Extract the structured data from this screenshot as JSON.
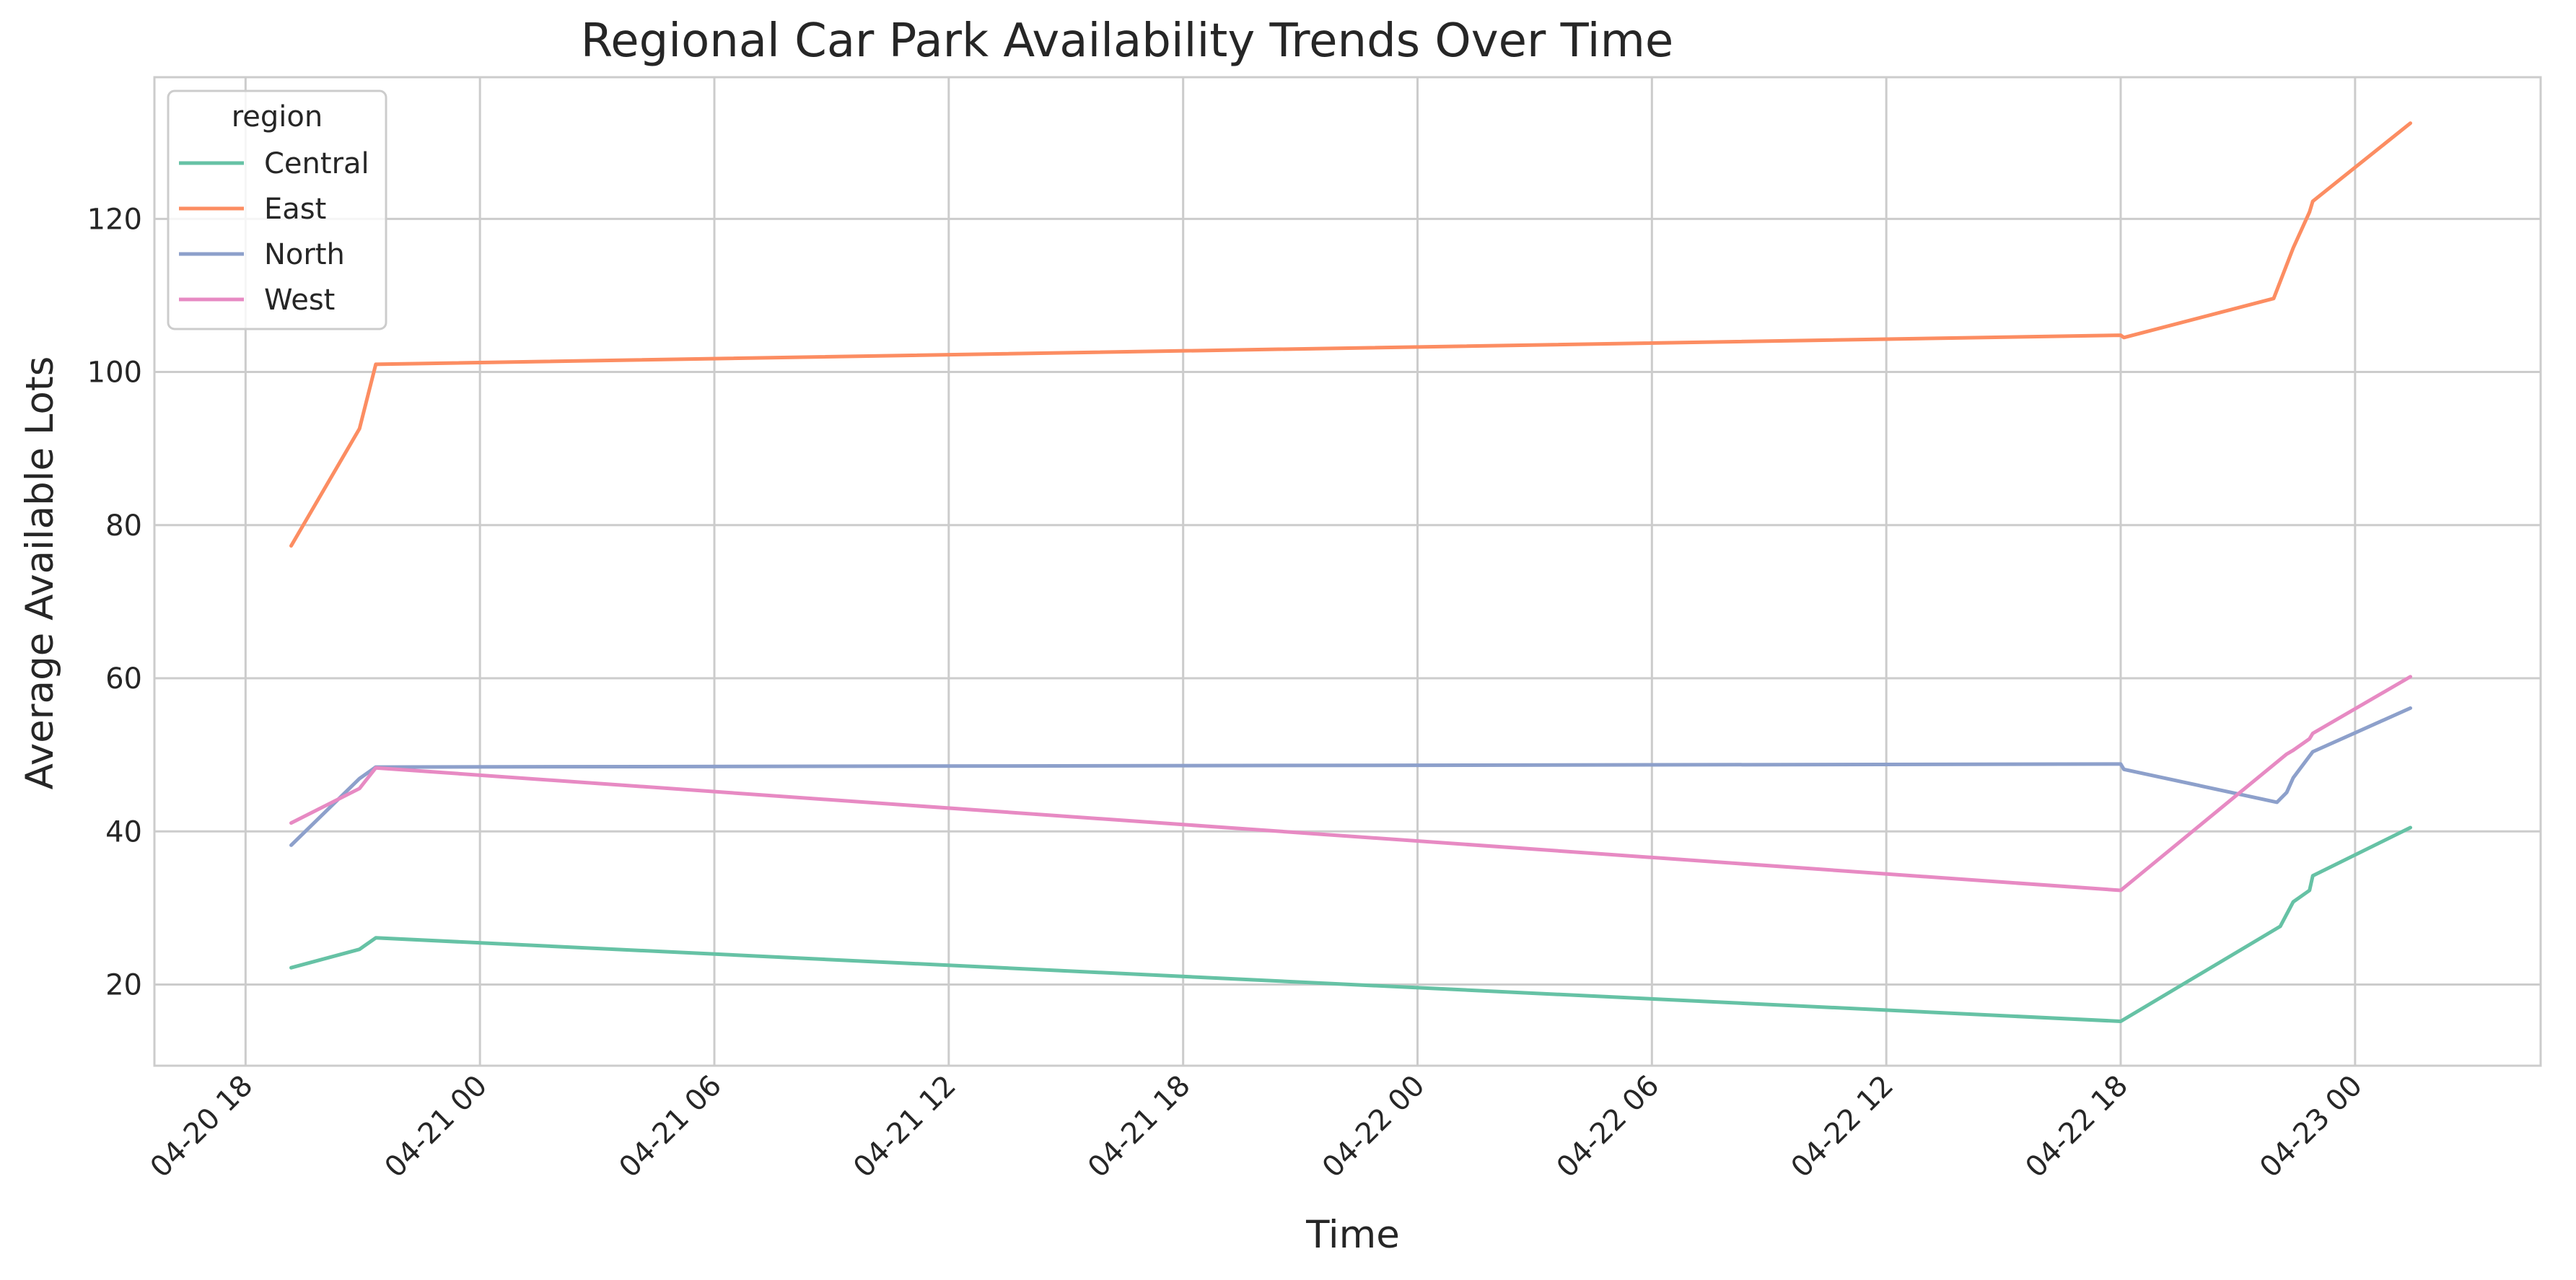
{
  "chart_data": {
    "type": "line",
    "title": "Regional Car Park Availability Trends Over Time",
    "xlabel": "Time",
    "ylabel": "Average Available Lots",
    "x_ticks": [
      {
        "label": "04-20 18",
        "value": "2024-04-20T18:00"
      },
      {
        "label": "04-21 00",
        "value": "2024-04-21T00:00"
      },
      {
        "label": "04-21 06",
        "value": "2024-04-21T06:00"
      },
      {
        "label": "04-21 12",
        "value": "2024-04-21T12:00"
      },
      {
        "label": "04-21 18",
        "value": "2024-04-21T18:00"
      },
      {
        "label": "04-22 00",
        "value": "2024-04-22T00:00"
      },
      {
        "label": "04-22 06",
        "value": "2024-04-22T06:00"
      },
      {
        "label": "04-22 12",
        "value": "2024-04-22T12:00"
      },
      {
        "label": "04-22 18",
        "value": "2024-04-22T18:00"
      },
      {
        "label": "04-23 00",
        "value": "2024-04-23T00:00"
      }
    ],
    "y_ticks": [
      20,
      40,
      60,
      80,
      100,
      120
    ],
    "xlim": [
      "2024-04-20T15:40",
      "2024-04-23T04:45"
    ],
    "ylim": [
      9.4,
      138.5
    ],
    "grid": true,
    "legend": {
      "title": "region",
      "position": "upper left"
    },
    "series": [
      {
        "name": "Central",
        "color": "#66c2a5",
        "points": [
          {
            "x": "2024-04-20T19:10",
            "y": 22.2
          },
          {
            "x": "2024-04-20T20:55",
            "y": 24.6
          },
          {
            "x": "2024-04-20T21:20",
            "y": 26.1
          },
          {
            "x": "2024-04-22T18:00",
            "y": 15.2
          },
          {
            "x": "2024-04-22T22:05",
            "y": 27.6
          },
          {
            "x": "2024-04-22T22:25",
            "y": 30.8
          },
          {
            "x": "2024-04-22T22:50",
            "y": 32.3
          },
          {
            "x": "2024-04-22T22:55",
            "y": 34.2
          },
          {
            "x": "2024-04-23T01:25",
            "y": 40.5
          }
        ]
      },
      {
        "name": "East",
        "color": "#fc8d62",
        "points": [
          {
            "x": "2024-04-20T19:10",
            "y": 77.3
          },
          {
            "x": "2024-04-20T20:55",
            "y": 92.6
          },
          {
            "x": "2024-04-20T21:20",
            "y": 101.0
          },
          {
            "x": "2024-04-22T18:00",
            "y": 104.8
          },
          {
            "x": "2024-04-22T18:05",
            "y": 104.5
          },
          {
            "x": "2024-04-22T21:55",
            "y": 109.6
          },
          {
            "x": "2024-04-22T22:25",
            "y": 116.2
          },
          {
            "x": "2024-04-22T22:50",
            "y": 120.9
          },
          {
            "x": "2024-04-22T22:55",
            "y": 122.3
          },
          {
            "x": "2024-04-23T01:25",
            "y": 132.5
          }
        ]
      },
      {
        "name": "North",
        "color": "#8da0cb",
        "points": [
          {
            "x": "2024-04-20T19:10",
            "y": 38.2
          },
          {
            "x": "2024-04-20T20:55",
            "y": 46.9
          },
          {
            "x": "2024-04-20T21:20",
            "y": 48.4
          },
          {
            "x": "2024-04-22T18:00",
            "y": 48.8
          },
          {
            "x": "2024-04-22T18:05",
            "y": 48.1
          },
          {
            "x": "2024-04-22T22:00",
            "y": 43.8
          },
          {
            "x": "2024-04-22T22:15",
            "y": 45.1
          },
          {
            "x": "2024-04-22T22:25",
            "y": 47.0
          },
          {
            "x": "2024-04-22T22:55",
            "y": 50.4
          },
          {
            "x": "2024-04-23T01:25",
            "y": 56.1
          }
        ]
      },
      {
        "name": "West",
        "color": "#e78ac3",
        "points": [
          {
            "x": "2024-04-20T19:10",
            "y": 41.1
          },
          {
            "x": "2024-04-20T20:55",
            "y": 45.6
          },
          {
            "x": "2024-04-20T21:20",
            "y": 48.3
          },
          {
            "x": "2024-04-22T18:00",
            "y": 32.3
          },
          {
            "x": "2024-04-22T22:15",
            "y": 50.1
          },
          {
            "x": "2024-04-22T22:25",
            "y": 50.6
          },
          {
            "x": "2024-04-22T22:50",
            "y": 52.1
          },
          {
            "x": "2024-04-22T22:55",
            "y": 52.8
          },
          {
            "x": "2024-04-23T01:25",
            "y": 60.2
          }
        ]
      }
    ]
  }
}
